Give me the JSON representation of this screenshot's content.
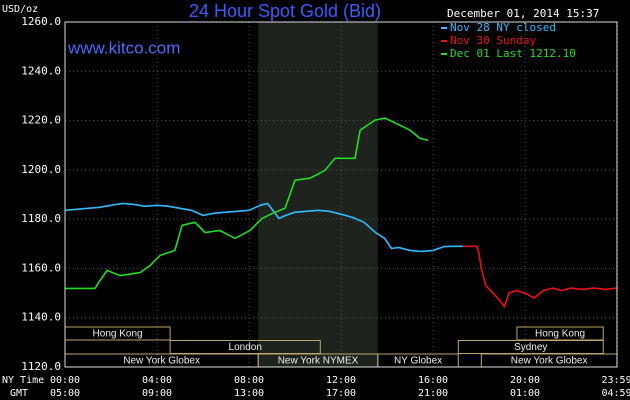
{
  "chart_data": {
    "type": "line",
    "title": "24 Hour Spot Gold (Bid)",
    "y_label": "USD/oz",
    "site": "www.kitco.com",
    "timestamp": "December 01, 2014 15:37",
    "x_label": "NY Time",
    "x2_label": "GMT",
    "xlim": [
      0,
      24
    ],
    "ylim": [
      1120,
      1260
    ],
    "xticks": [
      {
        "value": 0,
        "label": "00:00"
      },
      {
        "value": 4,
        "label": "04:00"
      },
      {
        "value": 8,
        "label": "08:00"
      },
      {
        "value": 12,
        "label": "12:00"
      },
      {
        "value": 16,
        "label": "16:00"
      },
      {
        "value": 20,
        "label": "20:00"
      },
      {
        "value": 23.98,
        "label": "23:59"
      }
    ],
    "x2ticklabels": [
      "05:00",
      "09:00",
      "13:00",
      "17:00",
      "21:00",
      "01:00",
      "04:59"
    ],
    "yticks": [
      {
        "value": 1120,
        "label": "1120.0"
      },
      {
        "value": 1140,
        "label": "1140.0"
      },
      {
        "value": 1160,
        "label": "1160.0"
      },
      {
        "value": 1180,
        "label": "1180.0"
      },
      {
        "value": 1200,
        "label": "1200.0"
      },
      {
        "value": 1220,
        "label": "1220.0"
      },
      {
        "value": 1240,
        "label": "1240.0"
      },
      {
        "value": 1260,
        "label": "1260.0"
      }
    ],
    "grid": true,
    "highlight": [
      8.4,
      13.6
    ],
    "sessions": [
      [
        {
          "name": "Hong Kong",
          "start": 0,
          "end": 4.57
        },
        {
          "name": "Hong Kong",
          "start": 19.65,
          "end": 23.4
        }
      ],
      [
        {
          "name": "London",
          "start": 4.57,
          "end": 11.1
        },
        {
          "name": "Sydney",
          "start": 17.1,
          "end": 23.4
        }
      ],
      [
        {
          "name": "New York Globex",
          "start": 0,
          "end": 8.4
        },
        {
          "name": "New York NYMEX",
          "start": 8.4,
          "end": 13.6
        },
        {
          "name": "NY Globex",
          "start": 13.6,
          "end": 17.1
        },
        {
          "name": "New York Globex",
          "start": 18.1,
          "end": 24
        }
      ]
    ],
    "series": [
      {
        "name": "Nov 28 NY closed",
        "color": "#33bbff",
        "x": [
          0,
          0.5,
          1,
          1.5,
          2,
          2.5,
          3,
          3.5,
          4,
          4.5,
          5,
          5.5,
          6,
          6.5,
          7,
          7.5,
          8,
          8.5,
          8.8,
          9,
          9.3,
          9.6,
          10,
          10.5,
          11,
          11.5,
          12,
          12.5,
          13,
          13.5,
          13.9,
          14.2,
          14.5,
          15,
          15.5,
          16,
          16.5,
          17,
          17.3
        ],
        "values": [
          1183.6,
          1184.0,
          1184.4,
          1184.8,
          1185.6,
          1186.4,
          1186.0,
          1185.2,
          1185.6,
          1185.2,
          1184.4,
          1183.6,
          1181.5,
          1182.4,
          1182.8,
          1183.2,
          1183.6,
          1185.6,
          1186.4,
          1184.0,
          1180.3,
          1181.5,
          1182.8,
          1183.2,
          1183.6,
          1183.2,
          1182.0,
          1180.7,
          1178.7,
          1174.6,
          1172.2,
          1168.1,
          1168.5,
          1167.3,
          1166.9,
          1167.3,
          1168.9,
          1169.0,
          1169.0
        ]
      },
      {
        "name": "Nov 30 Sunday",
        "color": "#ee1111",
        "x": [
          17.3,
          17.9,
          18.0,
          18.1,
          18.3,
          18.6,
          18.9,
          19.1,
          19.3,
          19.6,
          20,
          20.4,
          20.8,
          21.2,
          21.6,
          22,
          22.5,
          23,
          23.5,
          24
        ],
        "values": [
          1169,
          1169,
          1166,
          1160,
          1153,
          1150,
          1147,
          1144.5,
          1150,
          1151,
          1150,
          1148,
          1151,
          1152,
          1151,
          1152,
          1151.5,
          1152,
          1151.5,
          1152
        ]
      },
      {
        "name": "Dec 01 Last 1212.10",
        "color": "#22dd22",
        "x": [
          0,
          1.3,
          1.52,
          1.83,
          2.39,
          3.26,
          3.7,
          4.13,
          4.78,
          5.09,
          5.65,
          6.09,
          6.74,
          7.39,
          8.04,
          8.57,
          9.13,
          9.57,
          10.0,
          10.65,
          11.3,
          11.74,
          12.61,
          12.83,
          13.48,
          13.91,
          14.57,
          15.0,
          15.43,
          15.78
        ],
        "values": [
          1151.9,
          1151.9,
          1155.1,
          1159.2,
          1157.1,
          1158.3,
          1161.2,
          1165.3,
          1167.3,
          1177.5,
          1178.7,
          1174.6,
          1175.4,
          1172.2,
          1175.4,
          1180.3,
          1182.8,
          1184.4,
          1195.8,
          1196.6,
          1199.8,
          1204.7,
          1204.7,
          1216.1,
          1220.2,
          1221.0,
          1218.1,
          1216.1,
          1212.8,
          1212.0
        ]
      }
    ]
  }
}
